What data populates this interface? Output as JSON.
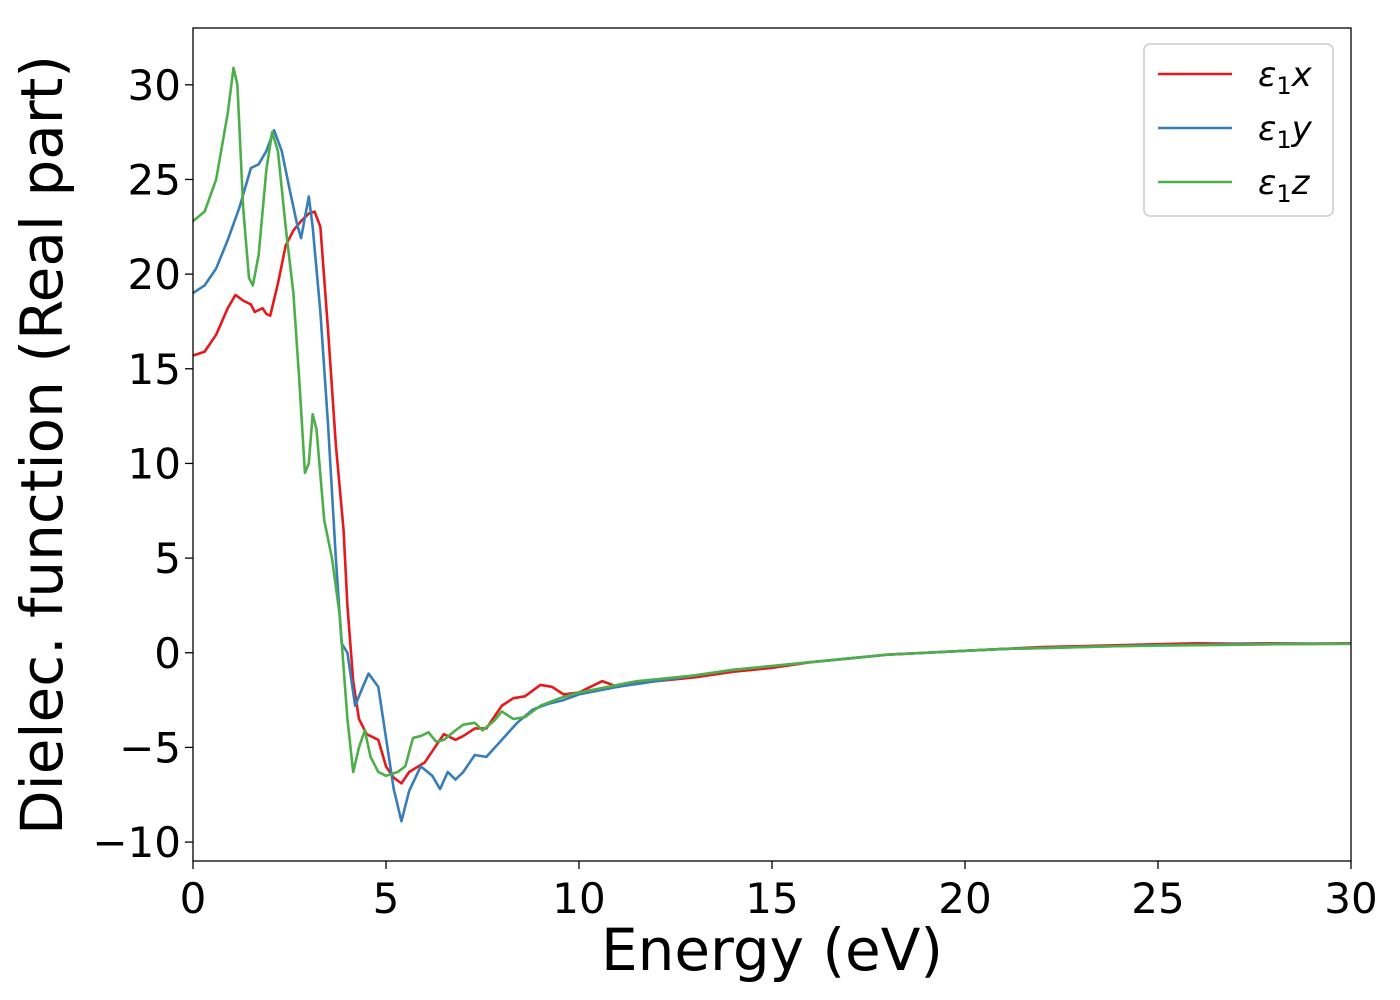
{
  "chart_data": {
    "type": "line",
    "title": "",
    "xlabel": "Energy (eV)",
    "ylabel": "Dielec. function (Real part)",
    "xlim": [
      0,
      30
    ],
    "ylim": [
      -11,
      33
    ],
    "xticks": [
      0,
      5,
      10,
      15,
      20,
      25,
      30
    ],
    "yticks": [
      -10,
      -5,
      0,
      5,
      10,
      15,
      20,
      25,
      30
    ],
    "xtick_labels": [
      "0",
      "5",
      "10",
      "15",
      "20",
      "25",
      "30"
    ],
    "ytick_labels": [
      "−10",
      "−5",
      "0",
      "5",
      "10",
      "15",
      "20",
      "25",
      "30"
    ],
    "grid": false,
    "legend_position": "top-right",
    "series": [
      {
        "name": "ε",
        "name_sub": "1",
        "name_var": "x",
        "color": "#e41a1c",
        "points": [
          [
            0,
            15.7
          ],
          [
            0.3,
            15.9
          ],
          [
            0.6,
            16.8
          ],
          [
            0.9,
            18.2
          ],
          [
            1.1,
            18.9
          ],
          [
            1.3,
            18.6
          ],
          [
            1.5,
            18.4
          ],
          [
            1.6,
            18.0
          ],
          [
            1.8,
            18.2
          ],
          [
            1.9,
            17.9
          ],
          [
            2.0,
            17.8
          ],
          [
            2.2,
            19.5
          ],
          [
            2.4,
            21.5
          ],
          [
            2.6,
            22.3
          ],
          [
            2.8,
            22.8
          ],
          [
            3.0,
            23.2
          ],
          [
            3.15,
            23.3
          ],
          [
            3.3,
            22.5
          ],
          [
            3.5,
            17.0
          ],
          [
            3.7,
            11.0
          ],
          [
            3.9,
            6.5
          ],
          [
            4.0,
            2.5
          ],
          [
            4.15,
            -1.5
          ],
          [
            4.3,
            -3.5
          ],
          [
            4.5,
            -4.3
          ],
          [
            4.8,
            -4.6
          ],
          [
            5.0,
            -6.0
          ],
          [
            5.2,
            -6.6
          ],
          [
            5.4,
            -6.9
          ],
          [
            5.6,
            -6.3
          ],
          [
            6.0,
            -5.8
          ],
          [
            6.2,
            -5.2
          ],
          [
            6.5,
            -4.3
          ],
          [
            6.8,
            -4.6
          ],
          [
            7.0,
            -4.4
          ],
          [
            7.3,
            -4.0
          ],
          [
            7.6,
            -4.0
          ],
          [
            8.0,
            -2.8
          ],
          [
            8.3,
            -2.4
          ],
          [
            8.6,
            -2.3
          ],
          [
            9.0,
            -1.7
          ],
          [
            9.3,
            -1.8
          ],
          [
            9.6,
            -2.2
          ],
          [
            10.0,
            -2.1
          ],
          [
            10.3,
            -1.8
          ],
          [
            10.6,
            -1.5
          ],
          [
            11.0,
            -1.8
          ],
          [
            11.5,
            -1.6
          ],
          [
            12.0,
            -1.5
          ],
          [
            13.0,
            -1.3
          ],
          [
            14.0,
            -1.0
          ],
          [
            15.0,
            -0.8
          ],
          [
            16.0,
            -0.5
          ],
          [
            17.0,
            -0.3
          ],
          [
            18.0,
            -0.1
          ],
          [
            19.0,
            0.0
          ],
          [
            20.0,
            0.1
          ],
          [
            21.0,
            0.2
          ],
          [
            22.0,
            0.3
          ],
          [
            23.0,
            0.35
          ],
          [
            24.0,
            0.4
          ],
          [
            25.0,
            0.45
          ],
          [
            26.0,
            0.5
          ],
          [
            27.0,
            0.48
          ],
          [
            28.0,
            0.5
          ],
          [
            29.0,
            0.48
          ],
          [
            30.0,
            0.5
          ]
        ]
      },
      {
        "name": "ε",
        "name_sub": "1",
        "name_var": "y",
        "color": "#377eb8",
        "points": [
          [
            0,
            19.0
          ],
          [
            0.3,
            19.4
          ],
          [
            0.6,
            20.3
          ],
          [
            0.9,
            21.8
          ],
          [
            1.2,
            23.5
          ],
          [
            1.5,
            25.6
          ],
          [
            1.7,
            25.8
          ],
          [
            1.9,
            26.5
          ],
          [
            2.1,
            27.6
          ],
          [
            2.3,
            26.5
          ],
          [
            2.5,
            24.5
          ],
          [
            2.7,
            22.6
          ],
          [
            2.8,
            21.9
          ],
          [
            2.9,
            23.0
          ],
          [
            3.0,
            24.1
          ],
          [
            3.1,
            22.5
          ],
          [
            3.3,
            18.0
          ],
          [
            3.5,
            12.0
          ],
          [
            3.7,
            5.0
          ],
          [
            3.85,
            0.5
          ],
          [
            4.0,
            0.0
          ],
          [
            4.2,
            -2.8
          ],
          [
            4.4,
            -1.8
          ],
          [
            4.55,
            -1.1
          ],
          [
            4.8,
            -1.8
          ],
          [
            5.0,
            -4.5
          ],
          [
            5.2,
            -7.2
          ],
          [
            5.4,
            -8.9
          ],
          [
            5.6,
            -7.3
          ],
          [
            5.9,
            -6.0
          ],
          [
            6.2,
            -6.5
          ],
          [
            6.4,
            -7.2
          ],
          [
            6.6,
            -6.3
          ],
          [
            6.8,
            -6.7
          ],
          [
            7.0,
            -6.3
          ],
          [
            7.3,
            -5.4
          ],
          [
            7.6,
            -5.5
          ],
          [
            8.0,
            -4.6
          ],
          [
            8.4,
            -3.7
          ],
          [
            8.8,
            -3.0
          ],
          [
            9.2,
            -2.7
          ],
          [
            9.6,
            -2.5
          ],
          [
            10.0,
            -2.2
          ],
          [
            11.0,
            -1.8
          ],
          [
            12.0,
            -1.5
          ],
          [
            13.0,
            -1.2
          ],
          [
            14.0,
            -0.9
          ],
          [
            15.0,
            -0.7
          ],
          [
            16.0,
            -0.5
          ],
          [
            17.0,
            -0.3
          ],
          [
            18.0,
            -0.1
          ],
          [
            19.0,
            0.0
          ],
          [
            20.0,
            0.1
          ],
          [
            21.0,
            0.2
          ],
          [
            22.0,
            0.25
          ],
          [
            23.0,
            0.3
          ],
          [
            24.0,
            0.35
          ],
          [
            25.0,
            0.4
          ],
          [
            26.0,
            0.42
          ],
          [
            27.0,
            0.45
          ],
          [
            28.0,
            0.47
          ],
          [
            29.0,
            0.48
          ],
          [
            30.0,
            0.48
          ]
        ]
      },
      {
        "name": "ε",
        "name_sub": "1",
        "name_var": "z",
        "color": "#4daf4a",
        "points": [
          [
            0,
            22.8
          ],
          [
            0.3,
            23.3
          ],
          [
            0.6,
            25.0
          ],
          [
            0.9,
            28.5
          ],
          [
            1.05,
            30.9
          ],
          [
            1.15,
            30.0
          ],
          [
            1.3,
            23.5
          ],
          [
            1.45,
            19.8
          ],
          [
            1.55,
            19.4
          ],
          [
            1.7,
            21.0
          ],
          [
            1.9,
            25.5
          ],
          [
            2.05,
            27.5
          ],
          [
            2.2,
            26.5
          ],
          [
            2.4,
            22.5
          ],
          [
            2.6,
            19.0
          ],
          [
            2.75,
            14.5
          ],
          [
            2.9,
            9.5
          ],
          [
            3.0,
            10.0
          ],
          [
            3.1,
            12.6
          ],
          [
            3.2,
            11.8
          ],
          [
            3.4,
            7.0
          ],
          [
            3.6,
            5.0
          ],
          [
            3.8,
            2.0
          ],
          [
            4.0,
            -3.5
          ],
          [
            4.15,
            -6.3
          ],
          [
            4.3,
            -5.0
          ],
          [
            4.45,
            -4.1
          ],
          [
            4.6,
            -5.5
          ],
          [
            4.8,
            -6.3
          ],
          [
            5.0,
            -6.5
          ],
          [
            5.3,
            -6.3
          ],
          [
            5.5,
            -6.0
          ],
          [
            5.7,
            -4.5
          ],
          [
            5.9,
            -4.4
          ],
          [
            6.1,
            -4.2
          ],
          [
            6.3,
            -4.7
          ],
          [
            6.5,
            -4.6
          ],
          [
            6.8,
            -4.1
          ],
          [
            7.0,
            -3.8
          ],
          [
            7.3,
            -3.7
          ],
          [
            7.5,
            -4.1
          ],
          [
            7.8,
            -3.6
          ],
          [
            8.0,
            -3.1
          ],
          [
            8.3,
            -3.5
          ],
          [
            8.6,
            -3.4
          ],
          [
            9.0,
            -2.8
          ],
          [
            9.5,
            -2.4
          ],
          [
            10.0,
            -2.1
          ],
          [
            10.5,
            -1.9
          ],
          [
            11.0,
            -1.7
          ],
          [
            11.5,
            -1.5
          ],
          [
            12.0,
            -1.4
          ],
          [
            13.0,
            -1.2
          ],
          [
            14.0,
            -0.9
          ],
          [
            15.0,
            -0.7
          ],
          [
            16.0,
            -0.5
          ],
          [
            17.0,
            -0.3
          ],
          [
            18.0,
            -0.1
          ],
          [
            19.0,
            0.0
          ],
          [
            20.0,
            0.1
          ],
          [
            21.0,
            0.2
          ],
          [
            22.0,
            0.25
          ],
          [
            23.0,
            0.3
          ],
          [
            24.0,
            0.35
          ],
          [
            25.0,
            0.38
          ],
          [
            26.0,
            0.4
          ],
          [
            27.0,
            0.42
          ],
          [
            28.0,
            0.45
          ],
          [
            29.0,
            0.46
          ],
          [
            30.0,
            0.47
          ]
        ]
      }
    ]
  }
}
